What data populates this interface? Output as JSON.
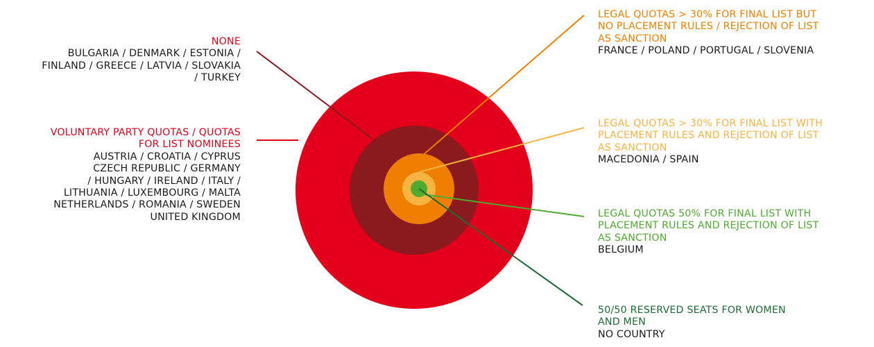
{
  "colors": {
    "ring_none": "#e2001a",
    "ring_voluntary": "#8b1a1f",
    "ring_quotas30_no_placement": "#ee7f00",
    "ring_quotas30_placement": "#f6b443",
    "ring_quotas50": "#4eab2f",
    "line_none": "#8b1a1f",
    "line_voluntary": "#e2001a",
    "line_reserved": "#1d6b34"
  },
  "categories": [
    {
      "id": "none",
      "title": "NONE",
      "countries": [
        "BULGARIA / DENMARK / ESTONIA /",
        "FINLAND / GREECE / LATVIA / SLOVAKIA",
        "/ TURKEY"
      ],
      "color": "#e2001a"
    },
    {
      "id": "voluntary",
      "title": [
        "VOLUNTARY PARTY QUOTAS / QUOTAS",
        "FOR LIST NOMINEES"
      ],
      "countries": [
        "AUSTRIA / CROATIA / CYPRUS",
        "CZECH REPUBLIC / GERMANY",
        "/ HUNGARY / IRELAND / ITALY /",
        "LITHUANIA / LUXEMBOURG / MALTA",
        "NETHERLANDS / ROMANIA / SWEDEN",
        "UNITED KINGDOM"
      ],
      "color": "#e2001a"
    },
    {
      "id": "quotas30_no_placement",
      "title": [
        "LEGAL QUOTAS > 30% FOR FINAL LIST BUT",
        "NO PLACEMENT RULES / REJECTION OF LIST",
        "AS SANCTION"
      ],
      "countries": [
        "FRANCE / POLAND / PORTUGAL / SLOVENIA"
      ],
      "color": "#ee7f00"
    },
    {
      "id": "quotas30_placement",
      "title": [
        "LEGAL QUOTAS > 30% FOR FINAL LIST WITH",
        "PLACEMENT RULES AND REJECTION OF LIST",
        "AS SANCTION"
      ],
      "countries": [
        "MACEDONIA / SPAIN"
      ],
      "color": "#f6b443"
    },
    {
      "id": "quotas50",
      "title": [
        "LEGAL QUOTAS 50% FOR FINAL LIST WITH",
        "PLACEMENT RULES AND REJECTION OF LIST",
        "AS SANCTION"
      ],
      "countries": [
        "BELGIUM"
      ],
      "color": "#4eab2f"
    },
    {
      "id": "reserved",
      "title": [
        "50/50 RESERVED SEATS FOR WOMEN",
        "AND MEN"
      ],
      "countries": [
        "NO COUNTRY"
      ],
      "color": "#1d6b34"
    }
  ]
}
